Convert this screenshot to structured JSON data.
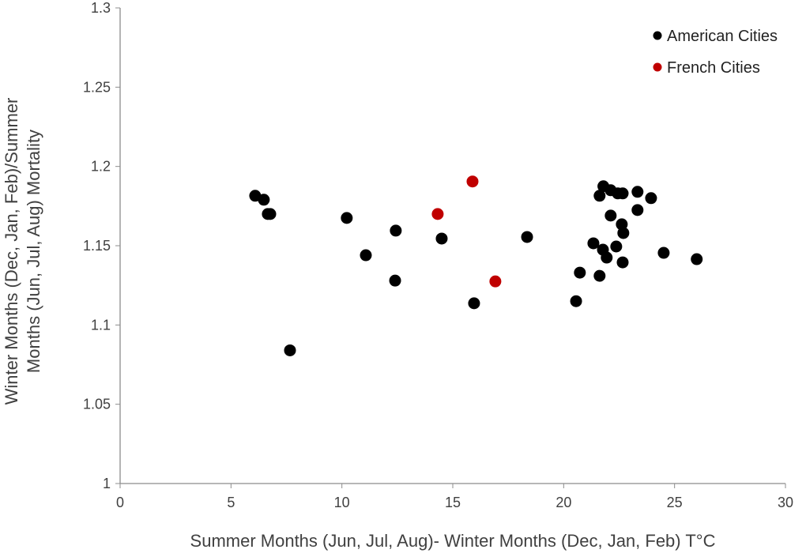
{
  "chart_data": {
    "type": "scatter",
    "title": "",
    "xlabel": "Summer Months (Jun, Jul, Aug)- Winter Months (Dec, Jan, Feb) T°C",
    "ylabel_lines": [
      "Winter Months (Dec, Jan, Feb)/Summer",
      "Months (Jun, Jul, Aug) Mortality"
    ],
    "xlim": [
      0,
      30
    ],
    "ylim": [
      1,
      1.3
    ],
    "x_ticks": [
      "0",
      "5",
      "10",
      "15",
      "20",
      "25",
      "30"
    ],
    "y_ticks": [
      "1",
      "1.05",
      "1.1",
      "1.15",
      "1.2",
      "1.25",
      "1.3"
    ],
    "grid": false,
    "legend_position": "top-right",
    "series": [
      {
        "name": "American Cities",
        "color": "#000000",
        "points": [
          [
            6.09,
            1.1815
          ],
          [
            6.48,
            1.179
          ],
          [
            6.66,
            1.17
          ],
          [
            6.77,
            1.17
          ],
          [
            7.66,
            1.084
          ],
          [
            10.22,
            1.1675
          ],
          [
            11.08,
            1.144
          ],
          [
            12.43,
            1.1595
          ],
          [
            12.4,
            1.128
          ],
          [
            14.5,
            1.1545
          ],
          [
            15.96,
            1.1137
          ],
          [
            18.35,
            1.1555
          ],
          [
            20.56,
            1.115
          ],
          [
            20.73,
            1.133
          ],
          [
            21.34,
            1.1515
          ],
          [
            21.62,
            1.1815
          ],
          [
            21.79,
            1.1875
          ],
          [
            22.12,
            1.185
          ],
          [
            22.44,
            1.183
          ],
          [
            21.77,
            1.1475
          ],
          [
            21.94,
            1.1425
          ],
          [
            21.62,
            1.131
          ],
          [
            22.12,
            1.169
          ],
          [
            22.37,
            1.1495
          ],
          [
            22.66,
            1.183
          ],
          [
            22.62,
            1.1635
          ],
          [
            22.69,
            1.158
          ],
          [
            22.66,
            1.1395
          ],
          [
            23.33,
            1.184
          ],
          [
            23.33,
            1.1725
          ],
          [
            23.94,
            1.18
          ],
          [
            24.51,
            1.1455
          ],
          [
            26.0,
            1.1415
          ]
        ]
      },
      {
        "name": "French Cities",
        "color": "#c00000",
        "points": [
          [
            14.32,
            1.17
          ],
          [
            15.89,
            1.1905
          ],
          [
            16.92,
            1.1275
          ]
        ]
      }
    ]
  }
}
